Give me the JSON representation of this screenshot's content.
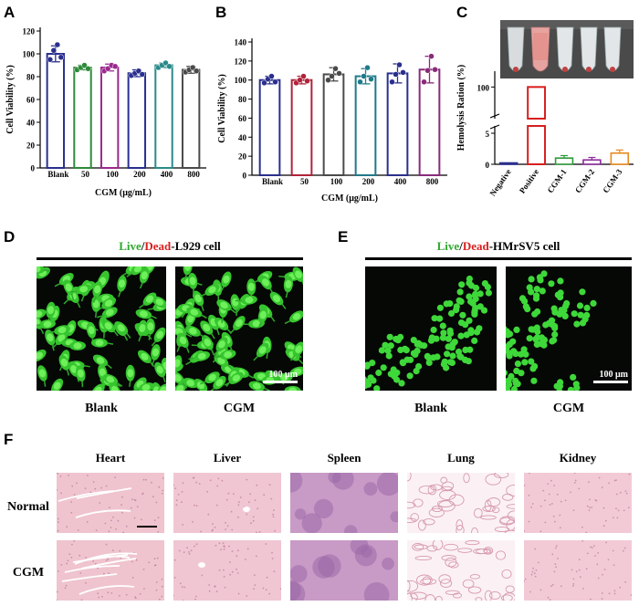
{
  "panels": {
    "A": "A",
    "B": "B",
    "C": "C",
    "D": "D",
    "E": "E",
    "F": "F"
  },
  "chart_data": [
    {
      "type": "bar",
      "panel": "A",
      "categories": [
        "Blank",
        "50",
        "100",
        "200",
        "400",
        "800"
      ],
      "values": [
        100,
        88,
        88,
        83,
        90,
        86
      ],
      "errors": [
        7,
        2,
        3,
        3,
        2,
        3
      ],
      "points": [
        [
          95,
          103,
          108,
          97
        ],
        [
          86,
          88,
          90,
          87
        ],
        [
          85,
          87,
          90,
          89
        ],
        [
          81,
          83,
          85,
          82
        ],
        [
          88,
          90,
          92,
          89
        ],
        [
          84,
          86,
          88,
          85
        ]
      ],
      "colors": [
        "#2a2f8e",
        "#2e8b3a",
        "#9a2a8e",
        "#2a2f8e",
        "#2a8a8a",
        "#4a4a4a"
      ],
      "xlabel": "CGM (μg/mL)",
      "ylabel": "Cell Viability (%)",
      "ylim": [
        0,
        120
      ],
      "yticks": [
        "0",
        "20",
        "40",
        "60",
        "80",
        "100",
        "120"
      ]
    },
    {
      "type": "bar",
      "panel": "B",
      "categories": [
        "Blank",
        "50",
        "100",
        "200",
        "400",
        "800"
      ],
      "values": [
        100,
        100,
        106,
        104,
        107,
        111
      ],
      "errors": [
        4,
        4,
        7,
        8,
        10,
        14
      ],
      "points": [
        [
          97,
          101,
          104,
          98
        ],
        [
          97,
          100,
          104,
          99
        ],
        [
          100,
          104,
          112,
          107
        ],
        [
          98,
          104,
          113,
          101
        ],
        [
          98,
          106,
          116,
          108
        ],
        [
          98,
          110,
          125,
          111
        ]
      ],
      "colors": [
        "#2a2f8e",
        "#b0233a",
        "#4a4a4a",
        "#1f7a8a",
        "#2a2f8e",
        "#8a2a7a"
      ],
      "xlabel": "CGM (μg/mL)",
      "ylabel": "Cell Viability (%)",
      "ylim": [
        0,
        140
      ],
      "yticks": [
        "0",
        "20",
        "40",
        "60",
        "80",
        "100",
        "120",
        "140"
      ]
    },
    {
      "type": "bar",
      "panel": "C",
      "categories": [
        "Negative",
        "Positive",
        "CGM-1",
        "CGM-2",
        "CGM-3"
      ],
      "values": [
        0,
        100,
        1.0,
        0.7,
        1.8
      ],
      "errors": [
        0.1,
        0.5,
        0.4,
        0.4,
        0.5
      ],
      "colors": [
        "#2a2f8e",
        "#d81e1e",
        "#2e9a3a",
        "#8a2a9a",
        "#e88a1e"
      ],
      "ylabel": "Hemolysis Ration (%)",
      "yticks_low": [
        "0",
        "5"
      ],
      "yticks_high": [
        "100"
      ],
      "axis_break": [
        5,
        100
      ]
    }
  ],
  "D": {
    "title_live": "Live",
    "title_sep": "/",
    "title_dead": "Dead",
    "title_rest": "-L929 cell",
    "labels": [
      "Blank",
      "CGM"
    ],
    "scale": "100 μm"
  },
  "E": {
    "title_live": "Live",
    "title_sep": "/",
    "title_dead": "Dead",
    "title_rest": "-HMrSV5 cell",
    "labels": [
      "Blank",
      "CGM"
    ],
    "scale": "100 μm"
  },
  "F": {
    "columns": [
      "Heart",
      "Liver",
      "Spleen",
      "Lung",
      "Kidney"
    ],
    "rows": [
      "Normal",
      "CGM"
    ]
  },
  "colors": {
    "live": "#2fa82f",
    "dead": "#d81e1e",
    "cell": "#3ddc3a",
    "tissue_pink": "#efc2cf",
    "spleen_purple": "#b78bb8"
  }
}
